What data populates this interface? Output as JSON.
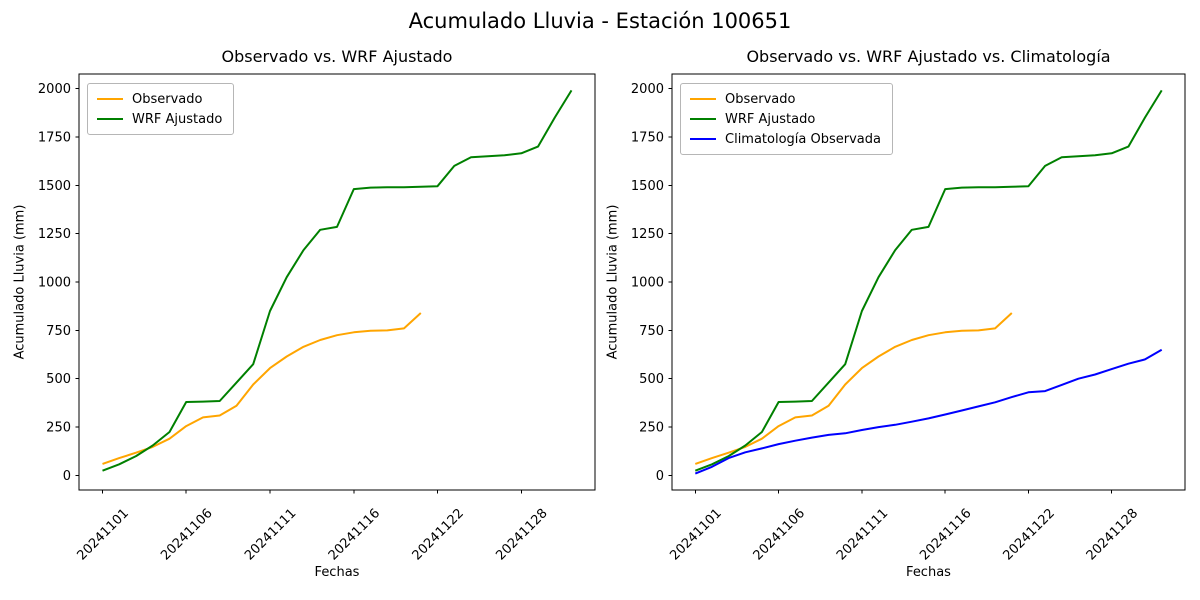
{
  "figure": {
    "title": "Acumulado Lluvia - Estación 100651"
  },
  "chart_data": [
    {
      "type": "line",
      "title": "Observado vs. WRF Ajustado",
      "xlabel": "Fechas",
      "ylabel": "Acumulado Lluvia (mm)",
      "x_tick_positions": [
        0,
        5,
        10,
        15,
        20,
        25
      ],
      "x_tick_labels": [
        "20241101",
        "20241106",
        "20241111",
        "20241116",
        "20241122",
        "20241128"
      ],
      "y_ticks": [
        0,
        250,
        500,
        750,
        1000,
        1250,
        1500,
        1750,
        2000
      ],
      "xlim": [
        -1.4,
        29.4
      ],
      "ylim": [
        -75,
        2075
      ],
      "grid": false,
      "legend_position": "upper left",
      "series": [
        {
          "name": "Observado",
          "color": "#ffa500",
          "values": [
            60,
            90,
            118,
            148,
            190,
            255,
            300,
            310,
            360,
            470,
            555,
            615,
            665,
            700,
            725,
            740,
            748,
            750,
            760,
            840
          ]
        },
        {
          "name": "WRF Ajustado",
          "color": "#008000",
          "values": [
            25,
            58,
            100,
            155,
            225,
            380,
            382,
            385,
            480,
            575,
            850,
            1025,
            1165,
            1270,
            1285,
            1480,
            1488,
            1490,
            1490,
            1492,
            1495,
            1600,
            1645,
            1650,
            1655,
            1665,
            1700,
            1850,
            1990
          ]
        }
      ]
    },
    {
      "type": "line",
      "title": "Observado vs. WRF Ajustado vs. Climatología",
      "xlabel": "Fechas",
      "ylabel": "Acumulado Lluvia (mm)",
      "x_tick_positions": [
        0,
        5,
        10,
        15,
        20,
        25
      ],
      "x_tick_labels": [
        "20241101",
        "20241106",
        "20241111",
        "20241116",
        "20241122",
        "20241128"
      ],
      "y_ticks": [
        0,
        250,
        500,
        750,
        1000,
        1250,
        1500,
        1750,
        2000
      ],
      "xlim": [
        -1.4,
        29.4
      ],
      "ylim": [
        -75,
        2075
      ],
      "grid": false,
      "legend_position": "upper left",
      "series": [
        {
          "name": "Observado",
          "color": "#ffa500",
          "values": [
            60,
            90,
            118,
            148,
            190,
            255,
            300,
            310,
            360,
            470,
            555,
            615,
            665,
            700,
            725,
            740,
            748,
            750,
            760,
            840
          ]
        },
        {
          "name": "WRF Ajustado",
          "color": "#008000",
          "values": [
            25,
            58,
            100,
            155,
            225,
            380,
            382,
            385,
            480,
            575,
            850,
            1025,
            1165,
            1270,
            1285,
            1480,
            1488,
            1490,
            1490,
            1492,
            1495,
            1600,
            1645,
            1650,
            1655,
            1665,
            1700,
            1850,
            1990
          ]
        },
        {
          "name": "Climatología Observada",
          "color": "#0000ff",
          "values": [
            10,
            45,
            90,
            120,
            140,
            162,
            180,
            196,
            210,
            218,
            235,
            250,
            262,
            278,
            295,
            315,
            336,
            357,
            378,
            405,
            430,
            436,
            468,
            500,
            522,
            550,
            578,
            600,
            650
          ]
        }
      ]
    }
  ]
}
